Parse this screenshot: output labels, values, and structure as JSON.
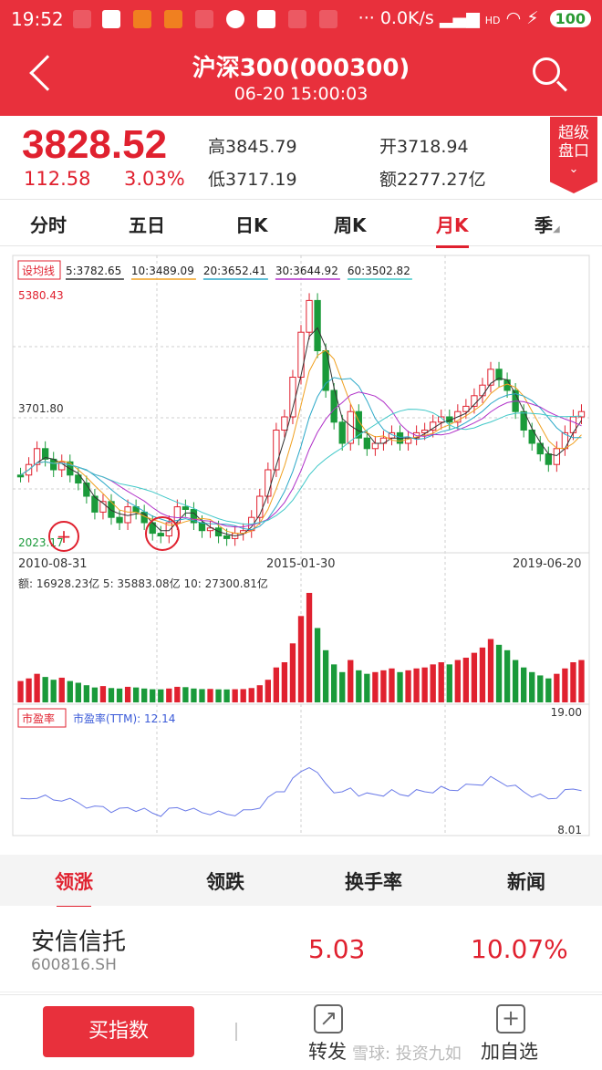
{
  "status_bar": {
    "time": "19:52",
    "net_speed": "0.0K/s",
    "network": "HD",
    "battery": "100"
  },
  "header": {
    "title": "沪深300(000300)",
    "subtitle": "06-20 15:00:03",
    "back_icon": "chevron-left-icon",
    "search_icon": "search-icon"
  },
  "quote": {
    "price": "3828.52",
    "change": "112.58",
    "change_pct": "3.03%",
    "high_label": "高",
    "high": "3845.79",
    "low_label": "低",
    "low": "3717.19",
    "open_label": "开",
    "open": "3718.94",
    "amount_label": "额",
    "amount": "2277.27亿"
  },
  "badge": {
    "line1": "超级",
    "line2": "盘口"
  },
  "tabs": [
    {
      "label": "分时"
    },
    {
      "label": "五日"
    },
    {
      "label": "日K"
    },
    {
      "label": "周K"
    },
    {
      "label": "月K",
      "active": true
    },
    {
      "label": "季"
    }
  ],
  "ma_legend": {
    "button": "设均线",
    "items": [
      {
        "label": "5:3782.65",
        "color": "#333333"
      },
      {
        "label": "10:3489.09",
        "color": "#f0a020"
      },
      {
        "label": "20:3652.41",
        "color": "#2aa8c8"
      },
      {
        "label": "30:3644.92",
        "color": "#b030c8"
      },
      {
        "label": "60:3502.82",
        "color": "#40c8c8"
      }
    ]
  },
  "chart": {
    "max_label": "5380.43",
    "mid_label": "3701.80",
    "min_label": "2023.17",
    "dates": [
      "2010-08-31",
      "2015-01-30",
      "2019-06-20"
    ],
    "volume_legend": "额: 16928.23亿  5: 35883.08亿  10: 27300.81亿",
    "pe_button": "市盈率",
    "pe_legend": "市盈率(TTM): 12.14",
    "pe_max": "19.00",
    "pe_min": "8.01",
    "up_color": "#e0212f",
    "down_color": "#1a9a3a"
  },
  "subtabs": [
    {
      "label": "领涨",
      "active": true
    },
    {
      "label": "领跌"
    },
    {
      "label": "换手率"
    },
    {
      "label": "新闻"
    }
  ],
  "top_row": {
    "name": "安信信托",
    "code": "600816.SH",
    "price": "5.03",
    "pct": "10.07%"
  },
  "bottom": {
    "buy": "买指数",
    "share": "转发",
    "add": "加自选",
    "watermark": "雪球: 投资九如"
  }
}
